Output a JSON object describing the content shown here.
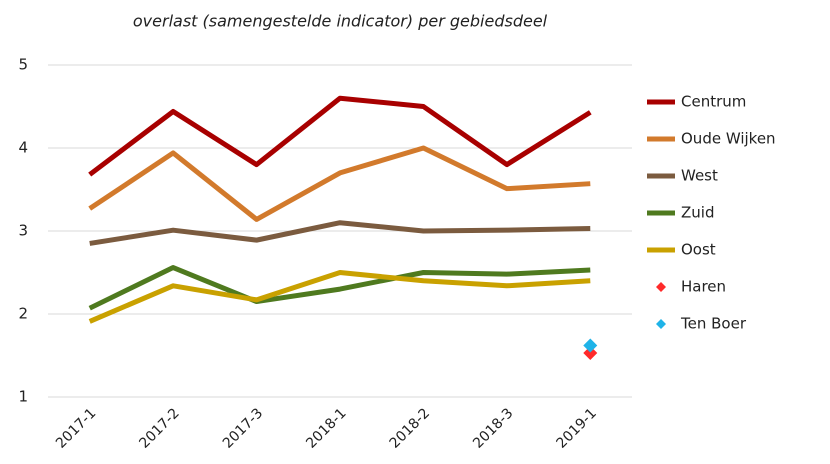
{
  "chart_data": {
    "type": "line",
    "title": "overlast (samengestelde indicator) per gebiedsdeel",
    "categories": [
      "2017-1",
      "2017-2",
      "2017-3",
      "2018-1",
      "2018-2",
      "2018-3",
      "2019-1"
    ],
    "series": [
      {
        "name": "Centrum",
        "color": "#a80000",
        "mode": "lines",
        "values": [
          3.68,
          4.44,
          3.8,
          4.6,
          4.5,
          3.8,
          4.43
        ]
      },
      {
        "name": "Oude Wijken",
        "color": "#d27a2c",
        "mode": "lines",
        "values": [
          3.27,
          3.94,
          3.14,
          3.7,
          4.0,
          3.51,
          3.57
        ]
      },
      {
        "name": "West",
        "color": "#7b5b3f",
        "mode": "lines",
        "values": [
          2.85,
          3.01,
          2.89,
          3.1,
          3.0,
          3.01,
          3.03
        ]
      },
      {
        "name": "Zuid",
        "color": "#4f7a1f",
        "mode": "lines",
        "values": [
          2.07,
          2.56,
          2.15,
          2.3,
          2.5,
          2.48,
          2.53
        ]
      },
      {
        "name": "Oost",
        "color": "#c9a100",
        "mode": "lines",
        "values": [
          1.91,
          2.34,
          2.17,
          2.5,
          2.4,
          2.34,
          2.4
        ]
      },
      {
        "name": "Haren",
        "color": "#ff2a2a",
        "mode": "markers",
        "values": [
          null,
          null,
          null,
          null,
          null,
          null,
          1.53
        ]
      },
      {
        "name": "Ten Boer",
        "color": "#1fb3e8",
        "mode": "markers",
        "values": [
          null,
          null,
          null,
          null,
          null,
          null,
          1.62
        ]
      }
    ],
    "ylim": [
      1,
      5
    ],
    "yticks": [
      1,
      2,
      3,
      4,
      5
    ],
    "grid": true,
    "legend": "right"
  }
}
